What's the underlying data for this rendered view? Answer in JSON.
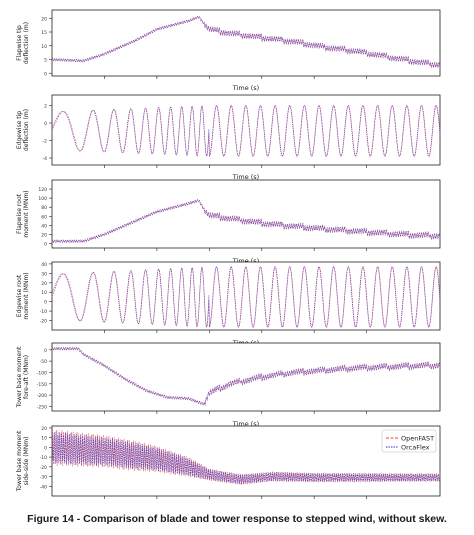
{
  "caption": "Figure 14 - Comparison of blade and tower response to stepped wind, without skew.",
  "legend": {
    "placement": "top-right",
    "entries": [
      "OpenFAST",
      "OrcaFlex"
    ]
  },
  "colors": {
    "openfast": "#e8473f",
    "orcaflex": "#2b2fd6"
  },
  "chart_data": [
    {
      "type": "line",
      "xlabel": "Time (s)",
      "ylabel": "Flapwise tip deflection (m)",
      "xlim": [
        0,
        3700
      ],
      "ylim": [
        -1,
        23
      ],
      "xticks": [
        500,
        1000,
        1500,
        2000,
        2500,
        3000
      ],
      "xticklabels": [
        "",
        "",
        "",
        "",
        "",
        ""
      ],
      "yticks": [
        0,
        5,
        10,
        15,
        20
      ],
      "series": [
        {
          "name": "OpenFAST"
        },
        {
          "name": "OrcaFlex"
        }
      ],
      "trend": {
        "x": [
          0,
          300,
          500,
          800,
          1000,
          1300,
          1400,
          1450,
          1500,
          1700,
          2000,
          2300,
          2600,
          2900,
          3200,
          3500,
          3700
        ],
        "y": [
          5,
          4.5,
          7,
          12,
          16,
          19,
          20.5,
          18,
          16,
          14.5,
          13,
          11.5,
          9.5,
          8,
          6,
          4,
          3
        ]
      }
    },
    {
      "type": "line",
      "xlabel": "Time (s)",
      "ylabel": "Edgewise tip deflection (m)",
      "xlim": [
        0,
        3700
      ],
      "ylim": [
        -4.8,
        3.2
      ],
      "xticks": [
        500,
        1000,
        1500,
        2000,
        2500,
        3000
      ],
      "xticklabels": [
        "",
        "",
        "",
        "",
        "",
        ""
      ],
      "yticks": [
        -4,
        -2,
        0,
        2
      ],
      "series": [
        {
          "name": "OpenFAST"
        },
        {
          "name": "OrcaFlex"
        }
      ],
      "oscillation": {
        "mean": -0.9,
        "amplitude": 2.9
      }
    },
    {
      "type": "line",
      "xlabel": "Time (s)",
      "ylabel": "Flapwise root moment (MNm)",
      "xlim": [
        0,
        3700
      ],
      "ylim": [
        -10,
        140
      ],
      "xticks": [
        500,
        1000,
        1500,
        2000,
        2500,
        3000
      ],
      "xticklabels": [
        "",
        "",
        "",
        "",
        "",
        ""
      ],
      "yticks": [
        0,
        20,
        40,
        60,
        80,
        100,
        120
      ],
      "series": [
        {
          "name": "OpenFAST"
        },
        {
          "name": "OrcaFlex"
        }
      ],
      "trend": {
        "x": [
          0,
          300,
          500,
          800,
          1000,
          1300,
          1400,
          1450,
          1500,
          1700,
          2000,
          2300,
          2600,
          2900,
          3200,
          3500,
          3700
        ],
        "y": [
          5,
          5,
          20,
          50,
          70,
          88,
          95,
          75,
          62,
          55,
          45,
          38,
          32,
          27,
          22,
          18,
          17
        ]
      }
    },
    {
      "type": "line",
      "xlabel": "Time (s)",
      "ylabel": "Edgewise root moment (MNm)",
      "xlim": [
        0,
        3700
      ],
      "ylim": [
        -30,
        42
      ],
      "xticks": [
        500,
        1000,
        1500,
        2000,
        2500,
        3000
      ],
      "xticklabels": [
        "",
        "",
        "",
        "",
        "",
        ""
      ],
      "yticks": [
        -20,
        -10,
        0,
        10,
        20,
        30,
        40
      ],
      "series": [
        {
          "name": "OpenFAST"
        },
        {
          "name": "OrcaFlex"
        }
      ],
      "oscillation": {
        "mean": 5,
        "amplitude": 32
      }
    },
    {
      "type": "line",
      "xlabel": "Time (s)",
      "ylabel": "Tower base moment fore-aft (MNm)",
      "xlim": [
        0,
        3700
      ],
      "ylim": [
        -270,
        30
      ],
      "xticks": [
        500,
        1000,
        1500,
        2000,
        2500,
        3000
      ],
      "xticklabels": [
        "",
        "",
        "",
        "",
        "",
        ""
      ],
      "yticks": [
        0,
        -50,
        -100,
        -150,
        -200,
        -250
      ],
      "series": [
        {
          "name": "OpenFAST"
        },
        {
          "name": "OrcaFlex"
        }
      ],
      "trend": {
        "x": [
          0,
          250,
          300,
          500,
          700,
          900,
          1100,
          1300,
          1450,
          1500,
          1700,
          2000,
          2300,
          2600,
          2900,
          3200,
          3500,
          3700
        ],
        "y": [
          5,
          5,
          -20,
          -70,
          -130,
          -180,
          -210,
          -215,
          -240,
          -190,
          -150,
          -120,
          -100,
          -90,
          -80,
          -75,
          -70,
          -68
        ]
      }
    },
    {
      "type": "line",
      "xlabel": "",
      "ylabel": "Tower base moment side-side (MNm)",
      "xlim": [
        0,
        3700
      ],
      "ylim": [
        -50,
        22
      ],
      "xticks": [
        500,
        1000,
        1500,
        2000,
        2500,
        3000
      ],
      "xticklabels": [
        "",
        "",
        "",
        "",
        "",
        ""
      ],
      "yticks": [
        -40,
        -30,
        -20,
        -10,
        0,
        10,
        20
      ],
      "series": [
        {
          "name": "OpenFAST"
        },
        {
          "name": "OrcaFlex"
        }
      ],
      "trend": {
        "x": [
          0,
          500,
          1000,
          1300,
          1500,
          1800,
          2100,
          2500,
          3000,
          3700
        ],
        "y": [
          0,
          -4,
          -12,
          -20,
          -28,
          -33,
          -30,
          -31,
          -31,
          -31
        ]
      },
      "oscillation_amplitude": {
        "x": [
          0,
          800,
          1300,
          1500,
          2000,
          3700
        ],
        "amp": [
          18,
          15,
          10,
          6,
          5,
          4
        ]
      }
    }
  ]
}
